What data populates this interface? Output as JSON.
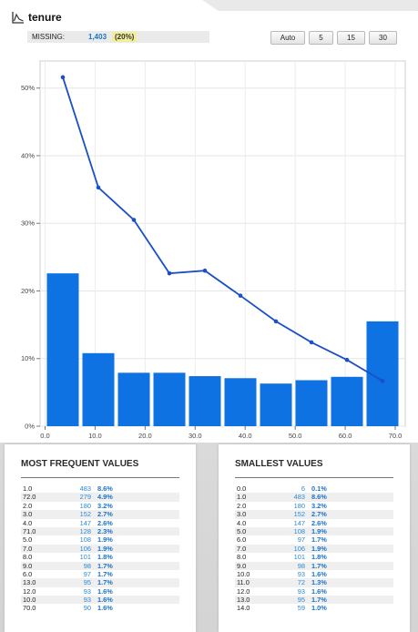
{
  "header": {
    "title": "tenure",
    "icon": "line-chart-icon"
  },
  "missing": {
    "label": "MISSING:",
    "count": "1,403",
    "percent": "(20%)"
  },
  "bin_buttons": [
    "Auto",
    "5",
    "15",
    "30"
  ],
  "colors": {
    "bar": "#0e72e2",
    "line": "#1a4fc8",
    "count": "#2a8ad8",
    "percent": "#1a73c8",
    "missing_highlight": "#f2ef9a"
  },
  "chart_data": {
    "type": "bar",
    "bin_edges": [
      0,
      7.1,
      14.2,
      21.3,
      28.4,
      35.5,
      42.6,
      49.7,
      56.8,
      63.9,
      71
    ],
    "values": [
      22.6,
      10.8,
      7.9,
      7.9,
      7.4,
      7.1,
      6.3,
      6.8,
      7.3,
      15.5
    ],
    "line_series": {
      "x": [
        3.55,
        10.65,
        17.75,
        24.85,
        31.95,
        39.05,
        46.15,
        53.25,
        60.35,
        67.45
      ],
      "values": [
        51.6,
        35.3,
        30.5,
        22.6,
        23.0,
        19.3,
        15.5,
        12.4,
        9.8,
        6.7
      ]
    },
    "xlim": [
      -1,
      72
    ],
    "ylim": [
      0,
      54
    ],
    "xticks": [
      "0.0",
      "10.0",
      "20.0",
      "30.0",
      "40.0",
      "50.0",
      "60.0",
      "70.0"
    ],
    "xtick_values": [
      0,
      10,
      20,
      30,
      40,
      50,
      60,
      70
    ],
    "yticks": [
      "0%",
      "10%",
      "20%",
      "30%",
      "40%",
      "50%"
    ],
    "ytick_values": [
      0,
      10,
      20,
      30,
      40,
      50
    ],
    "grid": true
  },
  "most_frequent": {
    "title": "MOST FREQUENT VALUES",
    "rows": [
      {
        "value": "1.0",
        "count": "483",
        "pct": "8.6%"
      },
      {
        "value": "72.0",
        "count": "279",
        "pct": "4.9%"
      },
      {
        "value": "2.0",
        "count": "180",
        "pct": "3.2%"
      },
      {
        "value": "3.0",
        "count": "152",
        "pct": "2.7%"
      },
      {
        "value": "4.0",
        "count": "147",
        "pct": "2.6%"
      },
      {
        "value": "71.0",
        "count": "128",
        "pct": "2.3%"
      },
      {
        "value": "5.0",
        "count": "108",
        "pct": "1.9%"
      },
      {
        "value": "7.0",
        "count": "106",
        "pct": "1.9%"
      },
      {
        "value": "8.0",
        "count": "101",
        "pct": "1.8%"
      },
      {
        "value": "9.0",
        "count": "98",
        "pct": "1.7%"
      },
      {
        "value": "6.0",
        "count": "97",
        "pct": "1.7%"
      },
      {
        "value": "13.0",
        "count": "95",
        "pct": "1.7%"
      },
      {
        "value": "12.0",
        "count": "93",
        "pct": "1.6%"
      },
      {
        "value": "10.0",
        "count": "93",
        "pct": "1.6%"
      },
      {
        "value": "70.0",
        "count": "90",
        "pct": "1.6%"
      }
    ]
  },
  "smallest": {
    "title": "SMALLEST VALUES",
    "rows": [
      {
        "value": "0.0",
        "count": "6",
        "pct": "0.1%"
      },
      {
        "value": "1.0",
        "count": "483",
        "pct": "8.6%"
      },
      {
        "value": "2.0",
        "count": "180",
        "pct": "3.2%"
      },
      {
        "value": "3.0",
        "count": "152",
        "pct": "2.7%"
      },
      {
        "value": "4.0",
        "count": "147",
        "pct": "2.6%"
      },
      {
        "value": "5.0",
        "count": "108",
        "pct": "1.9%"
      },
      {
        "value": "6.0",
        "count": "97",
        "pct": "1.7%"
      },
      {
        "value": "7.0",
        "count": "106",
        "pct": "1.9%"
      },
      {
        "value": "8.0",
        "count": "101",
        "pct": "1.8%"
      },
      {
        "value": "9.0",
        "count": "98",
        "pct": "1.7%"
      },
      {
        "value": "10.0",
        "count": "93",
        "pct": "1.6%"
      },
      {
        "value": "11.0",
        "count": "72",
        "pct": "1.3%"
      },
      {
        "value": "12.0",
        "count": "93",
        "pct": "1.6%"
      },
      {
        "value": "13.0",
        "count": "95",
        "pct": "1.7%"
      },
      {
        "value": "14.0",
        "count": "59",
        "pct": "1.0%"
      }
    ]
  }
}
